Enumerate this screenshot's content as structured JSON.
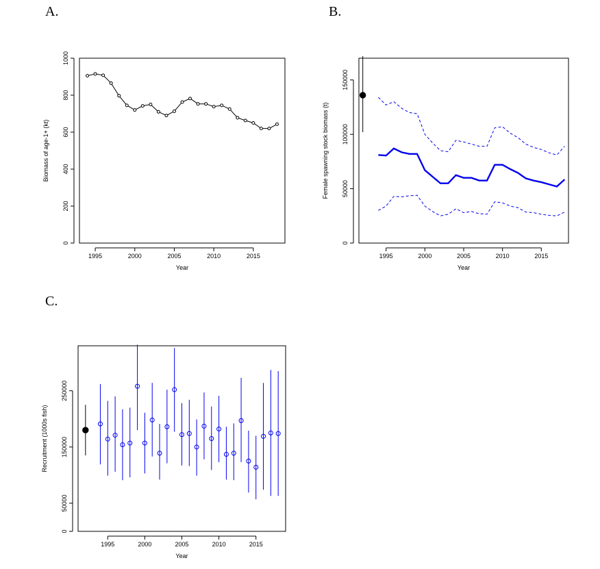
{
  "panels": {
    "a_label": "A.",
    "b_label": "B.",
    "c_label": "C."
  },
  "chart_data": [
    {
      "type": "line",
      "panel": "A.",
      "xlabel": "Year",
      "ylabel": "Biomass of age-1+ (kt)",
      "xlim": [
        1993,
        2019
      ],
      "ylim": [
        0,
        1000
      ],
      "xticks": [
        1995,
        2000,
        2005,
        2010,
        2015
      ],
      "yticks": [
        0,
        200,
        400,
        600,
        800,
        1000
      ],
      "color": "#000000",
      "markers": "open-circle",
      "x": [
        1994,
        1995,
        1996,
        1997,
        1998,
        1999,
        2000,
        2001,
        2002,
        2003,
        2004,
        2005,
        2006,
        2007,
        2008,
        2009,
        2010,
        2011,
        2012,
        2013,
        2014,
        2015,
        2016,
        2017,
        2018
      ],
      "values": [
        905,
        915,
        908,
        865,
        797,
        745,
        720,
        742,
        750,
        710,
        690,
        713,
        763,
        782,
        753,
        753,
        738,
        745,
        725,
        678,
        663,
        650,
        620,
        620,
        643
      ]
    },
    {
      "type": "line",
      "panel": "B.",
      "xlabel": "Year",
      "ylabel": "Female spawning stock biomass (t)",
      "xlim": [
        1991.5,
        2018.5
      ],
      "ylim": [
        0,
        170000
      ],
      "xticks": [
        1995,
        2000,
        2005,
        2010,
        2015
      ],
      "yticks": [
        0,
        50000,
        100000,
        150000
      ],
      "color": "#0000ee",
      "x": [
        1994,
        1995,
        1996,
        1997,
        1998,
        1999,
        2000,
        2001,
        2002,
        2003,
        2004,
        2005,
        2006,
        2007,
        2008,
        2009,
        2010,
        2011,
        2012,
        2013,
        2014,
        2015,
        2016,
        2017,
        2018
      ],
      "series": [
        {
          "values": [
            81000,
            80500,
            87000,
            83500,
            82000,
            82000,
            67000,
            61000,
            55000,
            55000,
            62500,
            60000,
            60000,
            57500,
            57500,
            72000,
            72000,
            68000,
            64500,
            59500,
            57500,
            56000,
            54000,
            52000,
            58500
          ],
          "style": "solid"
        },
        {
          "values": [
            134000,
            127000,
            130000,
            124000,
            120000,
            119000,
            100000,
            92000,
            85000,
            84000,
            94500,
            93000,
            91000,
            89000,
            89000,
            106000,
            107000,
            101000,
            97000,
            91000,
            88000,
            86000,
            83000,
            81000,
            89000
          ],
          "style": "dashed"
        },
        {
          "values": [
            30000,
            34000,
            43000,
            42500,
            43500,
            44000,
            34000,
            29000,
            25000,
            26500,
            31500,
            28000,
            29000,
            27000,
            26500,
            38000,
            37000,
            34000,
            32500,
            28500,
            28000,
            26500,
            25500,
            25000,
            28500
          ],
          "style": "dashed"
        }
      ],
      "initial_point": {
        "x": 1992,
        "y": 136000,
        "lower": 102000,
        "upper": 172000,
        "color": "#000000"
      }
    },
    {
      "type": "scatter",
      "panel": "C.",
      "xlabel": "Year",
      "ylabel": "Recruitment (1000s fish)",
      "xlim": [
        1991,
        2019
      ],
      "ylim": [
        0,
        330000
      ],
      "xticks": [
        1995,
        2000,
        2005,
        2010,
        2015
      ],
      "yticks": [
        0,
        50000,
        150000,
        250000
      ],
      "color": "#0000ee",
      "markers": "open-circle-with-error-bars",
      "x": [
        1994,
        1995,
        1996,
        1997,
        1998,
        1999,
        2000,
        2001,
        2002,
        2003,
        2004,
        2005,
        2006,
        2007,
        2008,
        2009,
        2010,
        2011,
        2012,
        2013,
        2014,
        2015,
        2016,
        2017,
        2018
      ],
      "values": [
        191000,
        164000,
        171000,
        154000,
        157000,
        258000,
        157000,
        198000,
        139000,
        186000,
        252000,
        172000,
        174000,
        150000,
        187000,
        165000,
        182000,
        137000,
        139000,
        197000,
        125000,
        114000,
        169000,
        175000,
        174000
      ],
      "upper": [
        262000,
        232000,
        240000,
        217000,
        220000,
        332000,
        211000,
        264000,
        191000,
        252000,
        326000,
        228000,
        234000,
        199000,
        247000,
        222000,
        241000,
        186000,
        192000,
        273000,
        179000,
        170000,
        264000,
        287000,
        285000
      ],
      "lower": [
        119000,
        99000,
        106000,
        91000,
        96000,
        180000,
        103000,
        133000,
        92000,
        121000,
        177000,
        117000,
        116000,
        99000,
        128000,
        109000,
        123000,
        92000,
        91000,
        123000,
        69000,
        57000,
        74000,
        63000,
        63000
      ],
      "initial_point": {
        "x": 1992,
        "y": 180000,
        "lower": 135000,
        "upper": 225000,
        "color": "#000000"
      }
    }
  ]
}
